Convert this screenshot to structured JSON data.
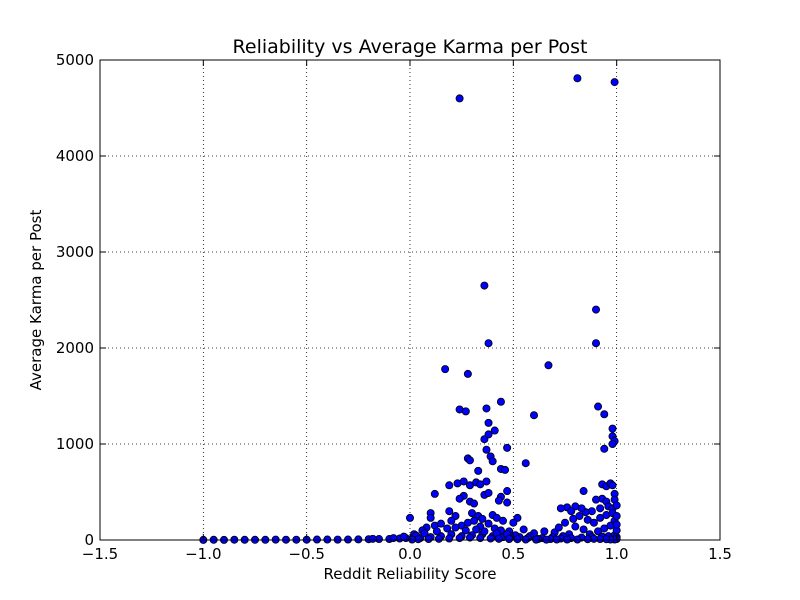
{
  "chart_data": {
    "type": "scatter",
    "title": "Reliability vs Average Karma per Post",
    "xlabel": "Reddit Reliability Score",
    "ylabel": "Average Karma per Post",
    "xlim": [
      -1.5,
      1.5
    ],
    "ylim": [
      0,
      5000
    ],
    "xticks": [
      -1.5,
      -1.0,
      -0.5,
      0.0,
      0.5,
      1.0,
      1.5
    ],
    "xtick_labels": [
      "−1.5",
      "−1.0",
      "−0.5",
      "0.0",
      "0.5",
      "1.0",
      "1.5"
    ],
    "yticks": [
      0,
      1000,
      2000,
      3000,
      4000,
      5000
    ],
    "ytick_labels": [
      "0",
      "1000",
      "2000",
      "3000",
      "4000",
      "5000"
    ],
    "grid": true,
    "marker_color": "#0000ff",
    "series": [
      {
        "points": [
          [
            0.24,
            4600
          ],
          [
            0.81,
            4810
          ],
          [
            0.99,
            4770
          ],
          [
            0.36,
            2650
          ],
          [
            0.38,
            2050
          ],
          [
            0.9,
            2400
          ],
          [
            0.9,
            2050
          ],
          [
            0.17,
            1780
          ],
          [
            0.28,
            1730
          ],
          [
            0.67,
            1820
          ],
          [
            0.24,
            1360
          ],
          [
            0.27,
            1340
          ],
          [
            0.37,
            1370
          ],
          [
            0.44,
            1440
          ],
          [
            0.6,
            1300
          ],
          [
            0.91,
            1390
          ],
          [
            0.94,
            1310
          ],
          [
            0.38,
            1220
          ],
          [
            0.41,
            1140
          ],
          [
            0.36,
            1050
          ],
          [
            0.38,
            1100
          ],
          [
            0.98,
            1160
          ],
          [
            0.98,
            1080
          ],
          [
            0.99,
            1030
          ],
          [
            0.98,
            1000
          ],
          [
            0.37,
            940
          ],
          [
            0.39,
            870
          ],
          [
            0.4,
            820
          ],
          [
            0.47,
            960
          ],
          [
            0.28,
            850
          ],
          [
            0.29,
            830
          ],
          [
            0.94,
            950
          ],
          [
            0.33,
            720
          ],
          [
            0.44,
            740
          ],
          [
            0.46,
            730
          ],
          [
            0.56,
            800
          ],
          [
            0.23,
            590
          ],
          [
            0.26,
            610
          ],
          [
            0.29,
            570
          ],
          [
            0.32,
            600
          ],
          [
            0.37,
            610
          ],
          [
            0.34,
            580
          ],
          [
            0.26,
            460
          ],
          [
            0.24,
            430
          ],
          [
            0.12,
            480
          ],
          [
            0.19,
            570
          ],
          [
            0.36,
            470
          ],
          [
            0.38,
            490
          ],
          [
            0.44,
            450
          ],
          [
            0.43,
            410
          ],
          [
            0.47,
            510
          ],
          [
            0.47,
            390
          ],
          [
            0.84,
            510
          ],
          [
            0.93,
            580
          ],
          [
            0.95,
            560
          ],
          [
            0.97,
            590
          ],
          [
            0.98,
            570
          ],
          [
            0.93,
            430
          ],
          [
            0.95,
            400
          ],
          [
            0.9,
            420
          ],
          [
            0.99,
            480
          ],
          [
            0.99,
            420
          ],
          [
            0.96,
            350
          ],
          [
            0.98,
            330
          ],
          [
            0.92,
            330
          ],
          [
            0.88,
            300
          ],
          [
            0.85,
            290
          ],
          [
            0.83,
            330
          ],
          [
            0.8,
            350
          ],
          [
            0.76,
            340
          ],
          [
            0.78,
            300
          ],
          [
            0.73,
            330
          ],
          [
            0.29,
            400
          ],
          [
            0.31,
            380
          ],
          [
            0.19,
            300
          ],
          [
            0.22,
            250
          ],
          [
            0.3,
            280
          ],
          [
            0.33,
            250
          ],
          [
            0.35,
            220
          ],
          [
            0.4,
            260
          ],
          [
            0.42,
            230
          ],
          [
            0.45,
            200
          ],
          [
            0.52,
            230
          ],
          [
            0.5,
            180
          ],
          [
            0.1,
            280
          ],
          [
            0.1,
            230
          ],
          [
            0.0,
            230
          ],
          [
            0.08,
            130
          ],
          [
            0.06,
            100
          ],
          [
            0.12,
            150
          ],
          [
            0.15,
            170
          ],
          [
            0.2,
            200
          ],
          [
            0.25,
            150
          ],
          [
            0.28,
            180
          ],
          [
            0.31,
            200
          ],
          [
            0.34,
            140
          ],
          [
            0.38,
            170
          ],
          [
            0.41,
            120
          ],
          [
            0.44,
            100
          ],
          [
            0.48,
            90
          ],
          [
            0.55,
            110
          ],
          [
            0.6,
            70
          ],
          [
            0.65,
            90
          ],
          [
            0.7,
            80
          ],
          [
            0.72,
            130
          ],
          [
            0.75,
            180
          ],
          [
            0.79,
            220
          ],
          [
            0.82,
            250
          ],
          [
            0.86,
            210
          ],
          [
            0.89,
            180
          ],
          [
            0.92,
            230
          ],
          [
            0.95,
            260
          ],
          [
            0.98,
            280
          ],
          [
            0.99,
            200
          ],
          [
            0.97,
            150
          ],
          [
            0.94,
            120
          ],
          [
            0.91,
            90
          ],
          [
            0.87,
            60
          ],
          [
            0.84,
            110
          ],
          [
            0.8,
            140
          ],
          [
            0.77,
            60
          ],
          [
            0.74,
            40
          ],
          [
            0.69,
            30
          ],
          [
            0.64,
            20
          ],
          [
            0.58,
            40
          ],
          [
            0.53,
            30
          ],
          [
            0.49,
            40
          ],
          [
            0.45,
            30
          ],
          [
            0.4,
            40
          ],
          [
            0.35,
            60
          ],
          [
            0.3,
            50
          ],
          [
            0.25,
            40
          ],
          [
            0.2,
            60
          ],
          [
            0.15,
            40
          ],
          [
            0.1,
            30
          ],
          [
            0.05,
            20
          ],
          [
            0.02,
            60
          ],
          [
            -0.02,
            20
          ],
          [
            -0.05,
            15
          ],
          [
            -0.1,
            10
          ],
          [
            -0.15,
            10
          ],
          [
            -0.2,
            8
          ],
          [
            -0.3,
            5
          ],
          [
            -0.4,
            5
          ],
          [
            -0.5,
            3
          ],
          [
            -0.6,
            3
          ],
          [
            -0.7,
            2
          ],
          [
            -0.8,
            2
          ],
          [
            -0.9,
            1
          ],
          [
            -1.0,
            1
          ],
          [
            -0.95,
            2
          ],
          [
            -0.85,
            3
          ],
          [
            -0.75,
            2
          ],
          [
            -0.65,
            4
          ],
          [
            -0.55,
            3
          ],
          [
            -0.45,
            5
          ],
          [
            -0.35,
            4
          ],
          [
            -0.25,
            6
          ],
          [
            -0.18,
            12
          ],
          [
            -0.08,
            20
          ],
          [
            -0.03,
            35
          ],
          [
            0.03,
            45
          ],
          [
            0.07,
            70
          ],
          [
            0.13,
            90
          ],
          [
            0.18,
            120
          ],
          [
            0.22,
            130
          ],
          [
            0.27,
            100
          ],
          [
            0.32,
            110
          ],
          [
            0.36,
            90
          ],
          [
            0.42,
            70
          ],
          [
            0.47,
            60
          ],
          [
            0.51,
            50
          ],
          [
            0.57,
            20
          ],
          [
            0.62,
            10
          ],
          [
            0.68,
            10
          ],
          [
            0.73,
            15
          ],
          [
            0.78,
            20
          ],
          [
            0.83,
            25
          ],
          [
            0.88,
            30
          ],
          [
            0.93,
            35
          ],
          [
            0.96,
            40
          ],
          [
            0.99,
            50
          ],
          [
            1.0,
            100
          ],
          [
            1.0,
            30
          ],
          [
            1.0,
            10
          ],
          [
            1.0,
            160
          ],
          [
            1.0,
            250
          ],
          [
            1.0,
            360
          ],
          [
            0.99,
            5
          ],
          [
            0.97,
            5
          ],
          [
            0.95,
            8
          ],
          [
            0.92,
            10
          ],
          [
            0.89,
            12
          ],
          [
            0.86,
            8
          ],
          [
            0.81,
            5
          ],
          [
            0.76,
            5
          ],
          [
            0.71,
            5
          ],
          [
            0.66,
            4
          ],
          [
            0.61,
            4
          ],
          [
            0.56,
            5
          ],
          [
            0.52,
            8
          ],
          [
            0.48,
            10
          ],
          [
            0.43,
            12
          ],
          [
            0.39,
            15
          ],
          [
            0.34,
            20
          ],
          [
            0.29,
            25
          ],
          [
            0.24,
            20
          ],
          [
            0.19,
            15
          ],
          [
            0.14,
            12
          ],
          [
            0.09,
            10
          ],
          [
            0.04,
            8
          ],
          [
            0.01,
            5
          ]
        ]
      }
    ]
  }
}
